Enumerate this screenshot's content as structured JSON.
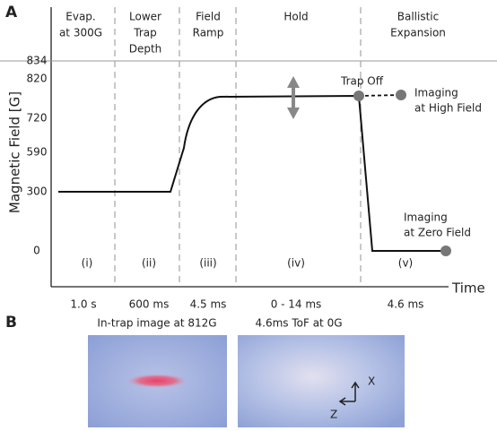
{
  "panel_a": {
    "label": "A",
    "y_axis_label": "Magnetic Field [G]",
    "x_axis_label": "Time",
    "y_tick_labels": [
      "834",
      "820",
      "720",
      "590",
      "300",
      "0"
    ],
    "phases": [
      {
        "title": [
          "Evap.",
          "at 300G"
        ],
        "numeral": "(i)",
        "duration": "1.0 s"
      },
      {
        "title": [
          "Lower",
          "Trap",
          "Depth"
        ],
        "numeral": "(ii)",
        "duration": "600 ms"
      },
      {
        "title": [
          "Field",
          "Ramp"
        ],
        "numeral": "(iii)",
        "duration": "4.5 ms"
      },
      {
        "title": [
          "Hold"
        ],
        "numeral": "(iv)",
        "duration": "0  - 14 ms"
      },
      {
        "title": [
          "Ballistic",
          "Expansion"
        ],
        "numeral": "(v)",
        "duration": "4.6 ms"
      }
    ],
    "annotations": {
      "trap_off": "Trap Off",
      "high_field": [
        "Imaging",
        "at High Field"
      ],
      "zero_field": [
        "Imaging",
        "at Zero Field"
      ]
    }
  },
  "panel_b": {
    "label": "B",
    "images": [
      {
        "caption": "In-trap image at 812G"
      },
      {
        "caption": "4.6ms ToF at 0G"
      }
    ],
    "axis_labels": {
      "x": "X",
      "z": "Z"
    }
  }
}
